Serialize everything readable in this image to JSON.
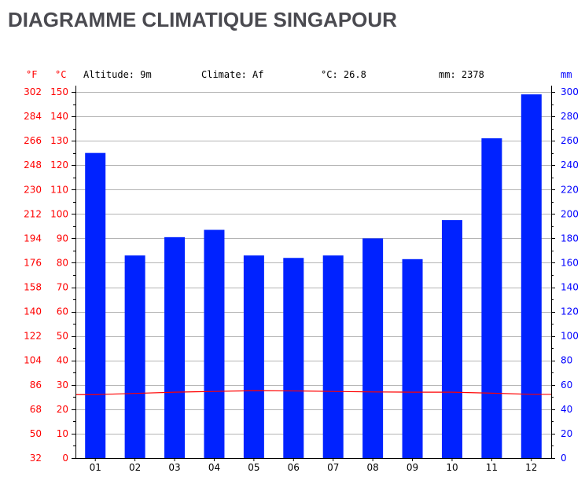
{
  "title": "DIAGRAMME CLIMATIQUE SINGAPOUR",
  "info": {
    "altitude": "Altitude: 9m",
    "climate": "Climate: Af",
    "temp": "°C: 26.8",
    "precip": "mm: 2378"
  },
  "colors": {
    "bars": "#0022ff",
    "temperature_line": "#ff0000",
    "left_axis": "#ff0000",
    "right_axis": "#0000ff",
    "title": "#4a4a50"
  },
  "chart_data": {
    "type": "bar",
    "categories": [
      "01",
      "02",
      "03",
      "04",
      "05",
      "06",
      "07",
      "08",
      "09",
      "10",
      "11",
      "12"
    ],
    "series": [
      {
        "values": [
          250,
          166,
          181,
          187,
          166,
          164,
          166,
          180,
          163,
          195,
          262,
          298
        ]
      },
      {
        "type": "line",
        "values": [
          26.0,
          26.5,
          27.0,
          27.3,
          27.6,
          27.5,
          27.3,
          27.1,
          27.0,
          27.0,
          26.6,
          26.1
        ]
      }
    ],
    "left_axis": {
      "f_unit": "°F",
      "c_unit": "°C",
      "f_ticks": [
        "32",
        "50",
        "68",
        "86",
        "104",
        "122",
        "140",
        "158",
        "176",
        "194",
        "212",
        "230",
        "248",
        "266",
        "284",
        "302"
      ],
      "c_ticks": [
        "0",
        "10",
        "20",
        "30",
        "40",
        "50",
        "60",
        "70",
        "80",
        "90",
        "100",
        "110",
        "120",
        "130",
        "140",
        "150"
      ],
      "ylim": [
        0,
        150
      ]
    },
    "right_axis": {
      "unit": "mm",
      "ticks": [
        "0",
        "20",
        "40",
        "60",
        "80",
        "100",
        "120",
        "140",
        "160",
        "180",
        "200",
        "220",
        "240",
        "260",
        "280",
        "300"
      ],
      "ylim": [
        0,
        300
      ]
    },
    "grid": true
  }
}
